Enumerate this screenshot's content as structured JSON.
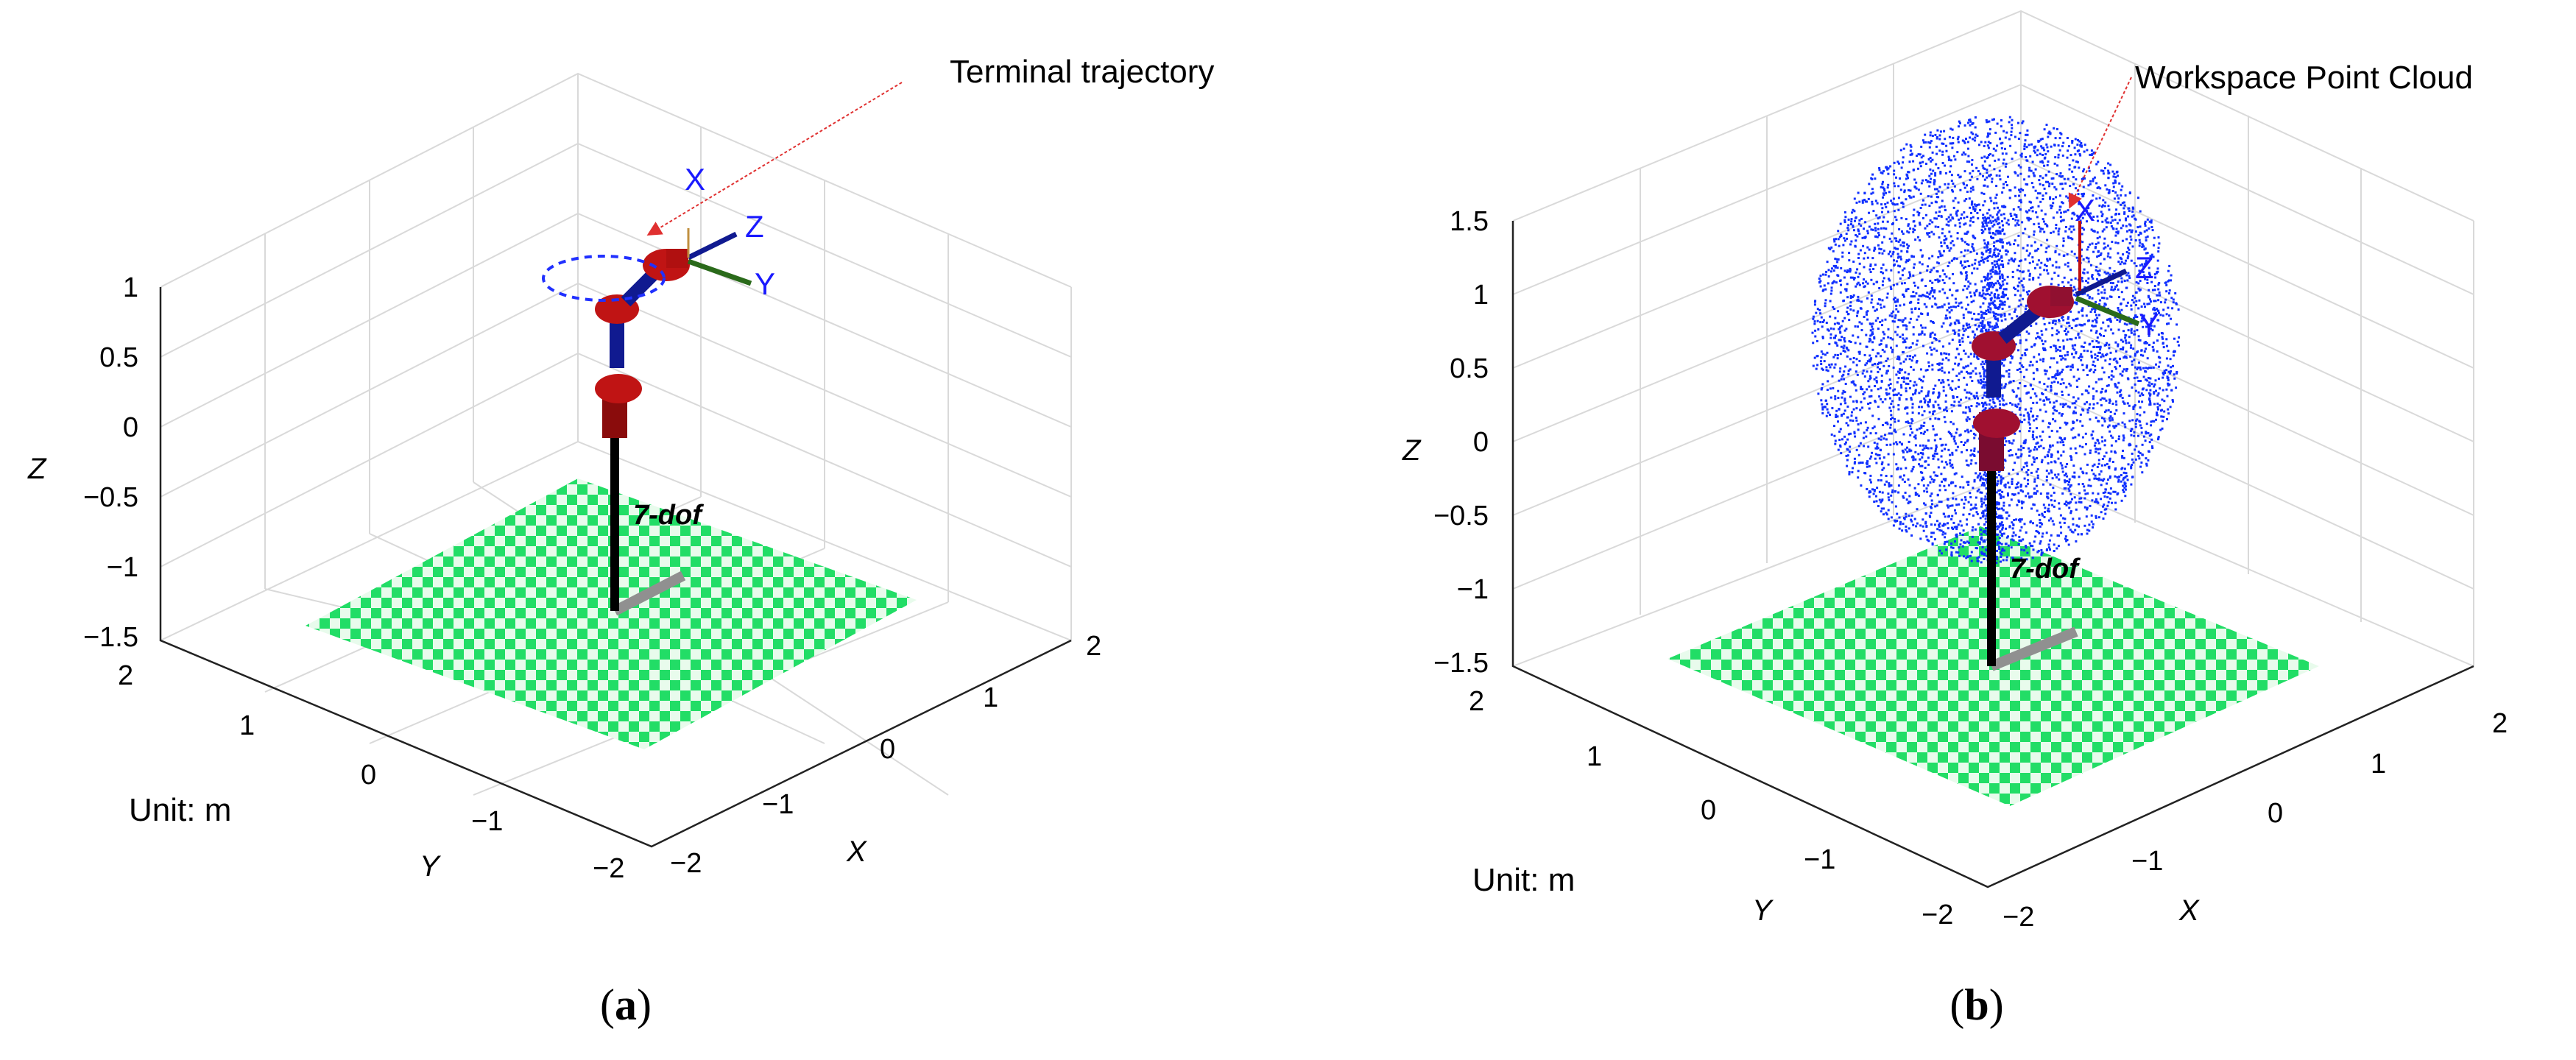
{
  "panels": [
    {
      "id": "a",
      "annotation": "Terminal trajectory",
      "unit": "Unit: m",
      "z_label": "Z",
      "y_label": "Y",
      "x_label": "X",
      "z_ticks": [
        "1",
        "0.5",
        "0",
        "−0.5",
        "−1",
        "−1.5"
      ],
      "y_ticks": [
        "2",
        "1",
        "0",
        "−1",
        "−2"
      ],
      "x_ticks": [
        "2",
        "1",
        "0",
        "−1",
        "−2"
      ],
      "frame_labels": [
        "X",
        "Z",
        "Y"
      ],
      "robot_label": "7-dof",
      "subcaption_open": "(",
      "subcaption_letter": "a",
      "subcaption_close": ")"
    },
    {
      "id": "b",
      "annotation": "Workspace Point Cloud",
      "unit": "Unit: m",
      "z_label": "Z",
      "y_label": "Y",
      "x_label": "X",
      "z_ticks": [
        "1.5",
        "1",
        "0.5",
        "0",
        "−0.5",
        "−1",
        "−1.5"
      ],
      "y_ticks": [
        "2",
        "1",
        "0",
        "−1",
        "−2"
      ],
      "x_ticks": [
        "2",
        "1",
        "0",
        "−1",
        "−2"
      ],
      "frame_labels": [
        "X",
        "Z",
        "Y"
      ],
      "robot_label": "7-dof",
      "subcaption_open": "(",
      "subcaption_letter": "b",
      "subcaption_close": ")"
    }
  ],
  "colors": {
    "floor_green": "#22dd66",
    "floor_light": "#d8f5dd",
    "link_red": "#b01010",
    "link_blue": "#101a90",
    "pole": "#000000",
    "point_cloud": "#1030ff",
    "annotation_arrow": "#e03030"
  }
}
